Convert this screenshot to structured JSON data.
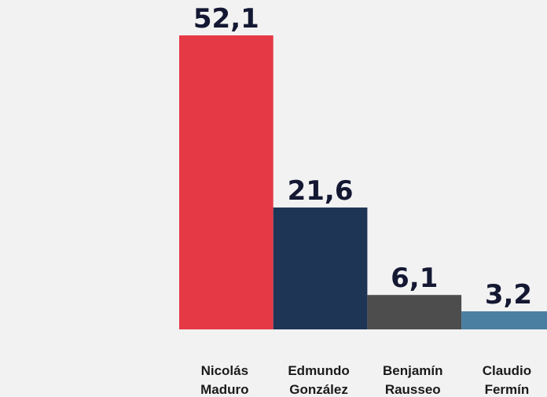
{
  "chart_data": {
    "type": "bar",
    "categories": [
      "Nicolás Maduro",
      "Edmundo González",
      "Benjamín Rausseo",
      "Claudio Fermín"
    ],
    "values": [
      52.1,
      21.6,
      6.1,
      3.2
    ],
    "value_labels": [
      "52,1",
      "21,6",
      "6,1",
      "3,2"
    ],
    "colors": [
      "#e63946",
      "#1e3556",
      "#4d4d4d",
      "#4a7fa1"
    ]
  }
}
